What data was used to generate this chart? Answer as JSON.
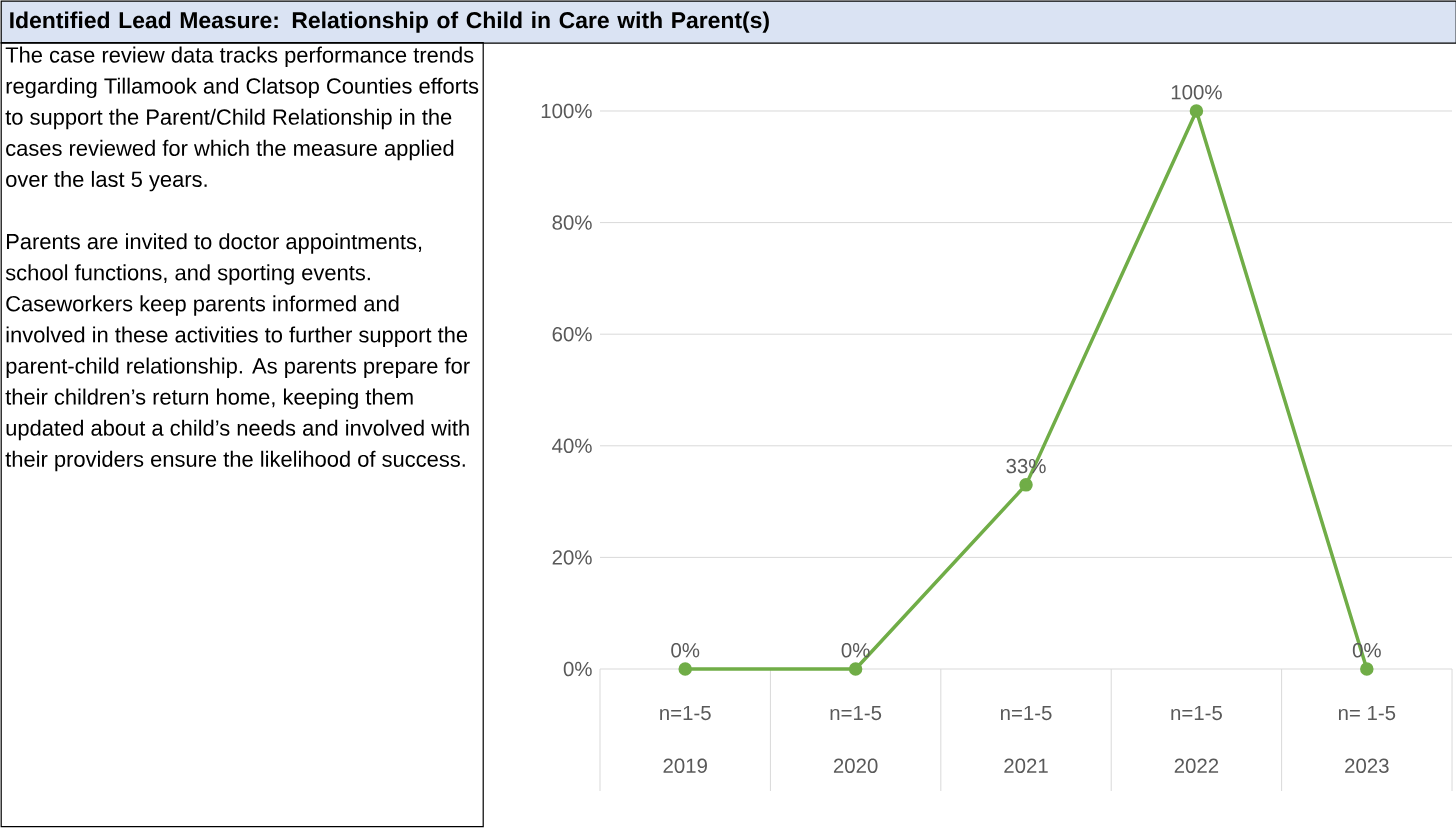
{
  "chart_data": {
    "type": "line",
    "title": "Identified Lead Measure: Relationship of Child in Care with Parent(s)",
    "annotations": [
      "The case review data tracks performance trends regarding Tillamook and Clatsop Counties efforts to support the Parent/Child Relationship in the cases reviewed for which the measure applied over the last 5 years.",
      "Parents are invited to doctor appointments, school functions, and sporting events. Caseworkers keep parents informed and involved in these activities to further support the parent-child relationship. As parents prepare for their children’s return home, keeping them updated about a child’s needs and involved with their providers ensure the likelihood of success.",
      "n=1-5",
      "n=1-5",
      "n=1-5",
      "n=1-5",
      "n= 1-5"
    ],
    "categories": [
      "2019",
      "2020",
      "2021",
      "2022",
      "2023"
    ],
    "values": [
      0,
      0,
      33,
      100,
      0
    ],
    "value_labels": [
      "0%",
      "0%",
      "33%",
      "100%",
      "0%"
    ],
    "color": "#70ad47",
    "ylim": [
      0,
      100
    ],
    "yticks": [
      {
        "value": 0,
        "label": "0%"
      },
      {
        "value": 20,
        "label": "20%"
      },
      {
        "value": 40,
        "label": "40%"
      },
      {
        "value": 60,
        "label": "60%"
      },
      {
        "value": 80,
        "label": "80%"
      },
      {
        "value": 100,
        "label": "100%"
      }
    ],
    "grid": "y",
    "marker": "circle",
    "line_style": "solid"
  }
}
